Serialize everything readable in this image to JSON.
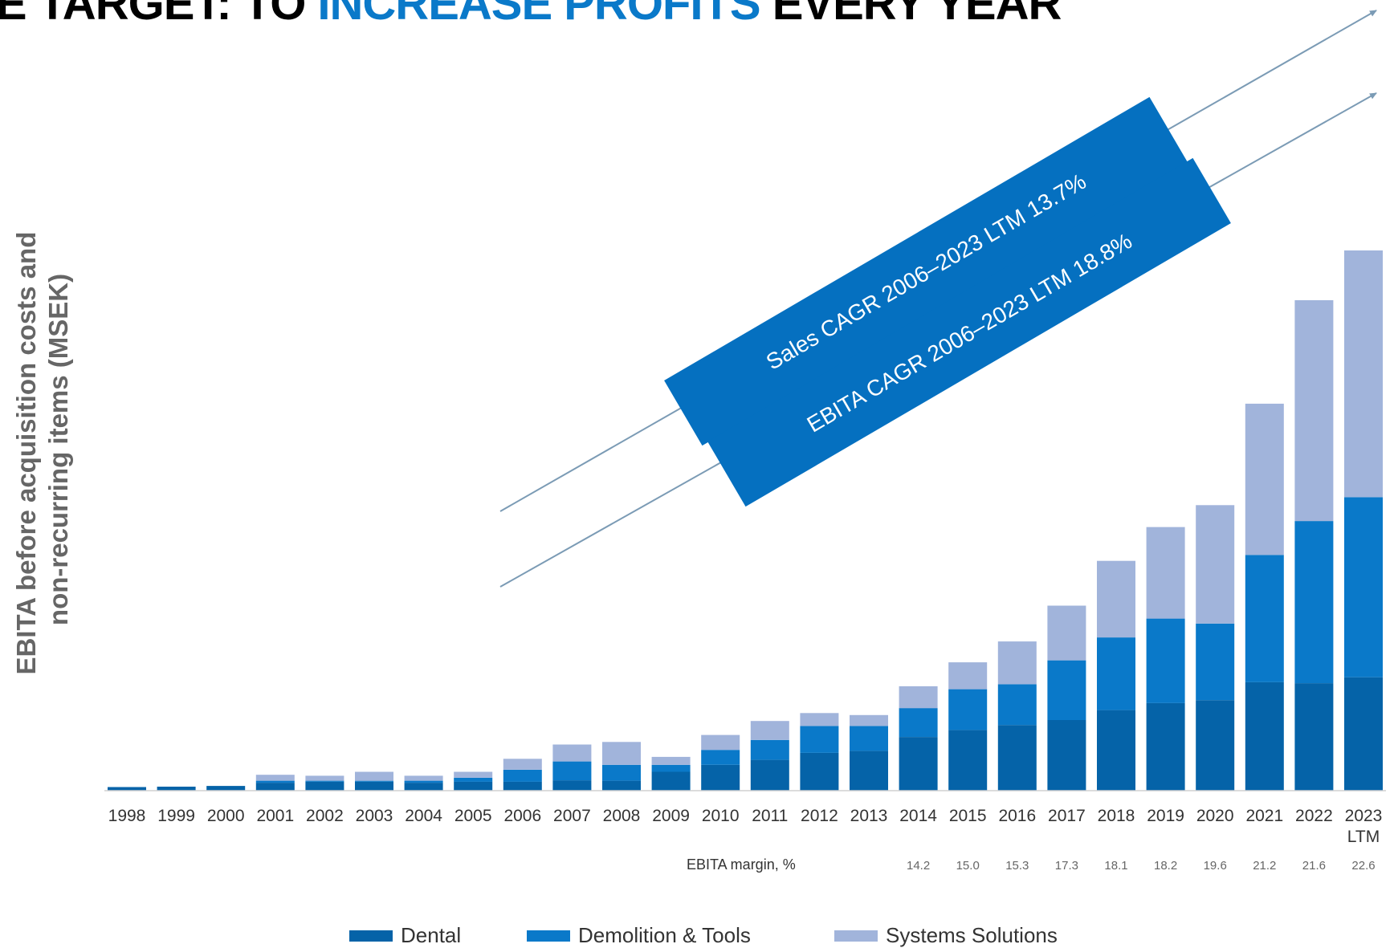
{
  "title": {
    "part1": "NE TARGET: TO ",
    "part2": "INCREASE PROFITS",
    "part3": " EVERY YEAR"
  },
  "colors": {
    "dental": "#0563a8",
    "demolition": "#0a79c9",
    "systems": "#a1b4db",
    "banner": "#0570c0",
    "arrow": "#7b9bb5",
    "highlight": "#0a79c9"
  },
  "banners": [
    {
      "text": "Sales CAGR 2006–2023 LTM 13.7%"
    },
    {
      "text": "EBITA CAGR 2006–2023 LTM 18.8%"
    }
  ],
  "margin_label": "EBITA margin, %",
  "chart_data": {
    "type": "bar",
    "stacked": true,
    "title": "",
    "ylabel": "EBITA before acquisition costs and non-recurring items (MSEK)",
    "xlabel": "",
    "categories": [
      "1998",
      "1999",
      "2000",
      "2001",
      "2002",
      "2003",
      "2004",
      "2005",
      "2006",
      "2007",
      "2008",
      "2009",
      "2010",
      "2011",
      "2012",
      "2013",
      "2014",
      "2015",
      "2016",
      "2017",
      "2018",
      "2019",
      "2020",
      "2021",
      "2022",
      "2023\nLTM"
    ],
    "series": [
      {
        "name": "Dental",
        "color": "#0563a8",
        "values": [
          18,
          20,
          24,
          40,
          45,
          45,
          40,
          45,
          45,
          52,
          50,
          95,
          130,
          155,
          190,
          200,
          270,
          305,
          330,
          355,
          405,
          440,
          455,
          545,
          540,
          570
        ]
      },
      {
        "name": "Demolition & Tools",
        "color": "#0a79c9",
        "values": [
          0,
          0,
          0,
          10,
          5,
          5,
          10,
          20,
          60,
          95,
          80,
          35,
          75,
          100,
          135,
          125,
          145,
          205,
          205,
          300,
          365,
          425,
          385,
          640,
          815,
          905
        ]
      },
      {
        "name": "Systems Solutions",
        "color": "#a1b4db",
        "values": [
          0,
          0,
          0,
          30,
          25,
          45,
          25,
          30,
          55,
          85,
          115,
          40,
          75,
          95,
          65,
          55,
          110,
          135,
          215,
          275,
          385,
          460,
          595,
          760,
          1110,
          1240
        ]
      }
    ],
    "ebita_margin": {
      "categories": [
        "2014",
        "2015",
        "2016",
        "2017",
        "2018",
        "2019",
        "2020",
        "2021",
        "2022",
        "2023\nLTM"
      ],
      "values": [
        "14.2",
        "15.0",
        "15.3",
        "17.3",
        "18.1",
        "18.2",
        "19.6",
        "21.2",
        "21.6",
        "22.6"
      ]
    },
    "ylim": [
      0,
      2950
    ],
    "grid": false,
    "legend_position": "bottom"
  }
}
